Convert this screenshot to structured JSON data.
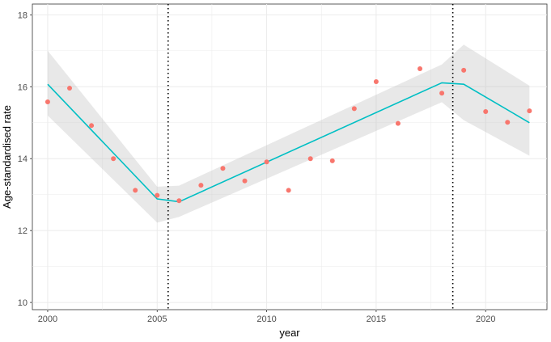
{
  "chart_data": {
    "type": "scatter",
    "xlabel": "year",
    "ylabel": "Age-standardised rate",
    "xlim": [
      1999.3,
      2022.8
    ],
    "ylim": [
      9.8,
      18.3
    ],
    "x_ticks": [
      2000,
      2005,
      2010,
      2015,
      2020
    ],
    "y_ticks": [
      10,
      12,
      14,
      16,
      18
    ],
    "grid": true,
    "legend": "none",
    "breakpoints": [
      2005.5,
      2018.5
    ],
    "series": [
      {
        "kind": "points",
        "color": "#F8766D",
        "x": [
          2000,
          2001,
          2002,
          2003,
          2004,
          2005,
          2006,
          2007,
          2008,
          2009,
          2010,
          2011,
          2012,
          2013,
          2014,
          2015,
          2016,
          2017,
          2018,
          2019,
          2020,
          2021,
          2022
        ],
        "y": [
          15.58,
          15.96,
          14.92,
          14.0,
          13.12,
          12.98,
          12.83,
          13.26,
          13.73,
          13.38,
          13.91,
          13.12,
          14.0,
          13.94,
          15.39,
          16.14,
          14.98,
          16.5,
          15.82,
          16.46,
          15.31,
          15.01,
          15.33
        ]
      },
      {
        "kind": "fit-line",
        "color": "#00BFC4",
        "x": [
          2000,
          2005,
          2006,
          2018,
          2019,
          2022
        ],
        "y": [
          16.07,
          12.88,
          12.8,
          16.11,
          16.07,
          15.0
        ],
        "band_lower": [
          15.2,
          12.22,
          12.38,
          15.57,
          15.07,
          14.08
        ],
        "band_upper": [
          17.0,
          13.22,
          13.25,
          16.62,
          17.17,
          16.03
        ],
        "band_color": "#BEBEBE"
      }
    ]
  }
}
